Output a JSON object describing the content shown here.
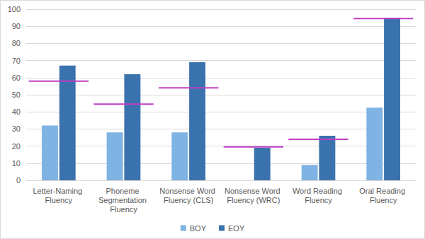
{
  "chart_data": {
    "type": "bar",
    "categories": [
      "Letter-Naming Fluency",
      "Phoneme Segmentation Fluency",
      "Nonsense Word Fluency (CLS)",
      "Nonsense Word Fluency (WRC)",
      "Word Reading Fluency",
      "Oral Reading Fluency"
    ],
    "series": [
      {
        "name": "BOY",
        "color": "#7eb3e4",
        "values": [
          32,
          28,
          28,
          null,
          9,
          42.5
        ]
      },
      {
        "name": "EOY",
        "color": "#3a72ad",
        "values": [
          67,
          62,
          69,
          19,
          26,
          95
        ]
      }
    ],
    "benchmarks": {
      "color": "#c03cc6",
      "values": [
        58,
        44.5,
        54,
        19.5,
        24,
        94.5
      ]
    },
    "ylim": [
      0,
      100
    ],
    "yticks": [
      0,
      10,
      20,
      30,
      40,
      50,
      60,
      70,
      80,
      90,
      100
    ],
    "grid": true,
    "legend": "bottom"
  }
}
